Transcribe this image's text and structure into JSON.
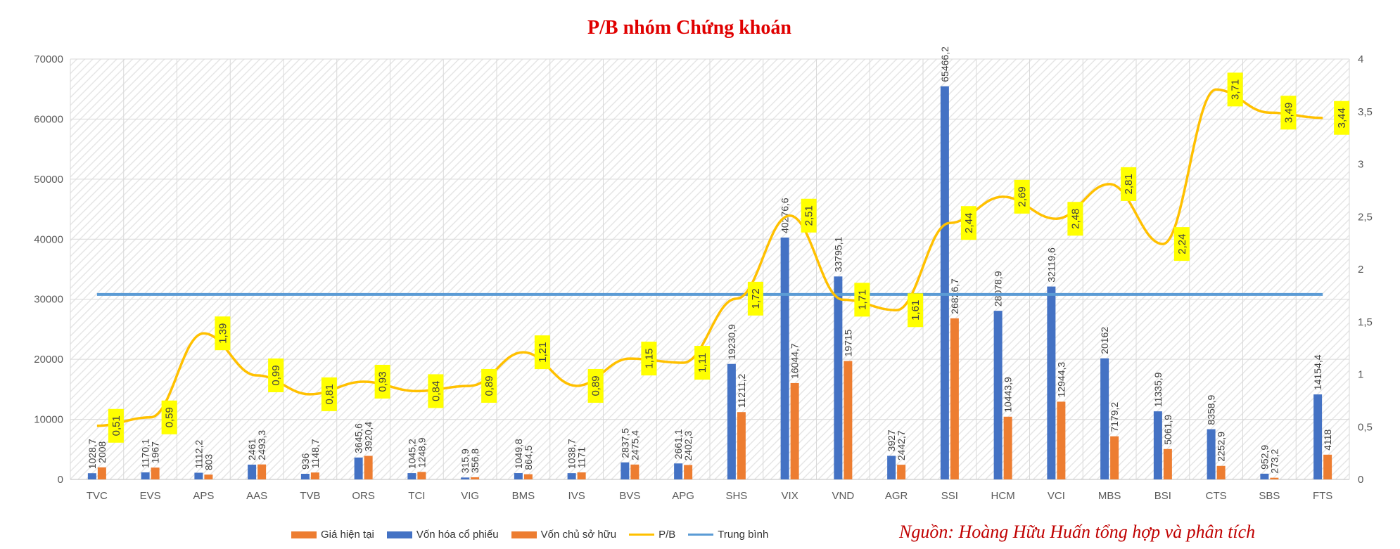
{
  "title": "P/B nhóm Chứng khoán",
  "source": "Nguồn: Hoàng Hữu Huấn tổng hợp và phân tích",
  "colors": {
    "title": "#e00000",
    "source": "#c00000",
    "von_hoa": "#4472c4",
    "von_csh": "#ed7d31",
    "gia": "#ed7d31",
    "pb": "#ffc000",
    "avg": "#5b9bd5",
    "label_bg": "#ffff00",
    "grid": "#d9d9d9",
    "axis_text": "#595959"
  },
  "legend": [
    {
      "key": "gia",
      "label": "Giá hiện tại",
      "kind": "box"
    },
    {
      "key": "von_hoa",
      "label": "Vốn hóa cổ phiếu",
      "kind": "box"
    },
    {
      "key": "von_csh",
      "label": "Vốn chủ sở hữu",
      "kind": "box"
    },
    {
      "key": "pb",
      "label": "P/B",
      "kind": "line"
    },
    {
      "key": "avg",
      "label": "Trung bình",
      "kind": "line"
    }
  ],
  "chart_data": {
    "type": "bar",
    "categories": [
      "TVC",
      "EVS",
      "APS",
      "AAS",
      "TVB",
      "ORS",
      "TCI",
      "VIG",
      "BMS",
      "IVS",
      "BVS",
      "APG",
      "SHS",
      "VIX",
      "VND",
      "AGR",
      "SSI",
      "HCM",
      "VCI",
      "MBS",
      "BSI",
      "CTS",
      "SBS",
      "FTS"
    ],
    "series": [
      {
        "name": "Vốn hóa cổ phiếu",
        "axis": "left",
        "values": [
          1028.7,
          1170.1,
          1112.2,
          2461,
          936,
          3645.6,
          1045.2,
          315.9,
          1049.8,
          1038.7,
          2837.5,
          2661.1,
          19230.9,
          40276.6,
          33795.1,
          3927,
          65466.2,
          28078.9,
          32119.6,
          20162,
          11335.9,
          8358.9,
          952.9,
          14154.4
        ],
        "labels": [
          "1028,7",
          "1170,1",
          "1112,2",
          "2461",
          "936",
          "3645,6",
          "1045,2",
          "315,9",
          "1049,8",
          "1038,7",
          "2837,5",
          "2661,1",
          "19230,9",
          "40276,6",
          "33795,1",
          "3927",
          "65466,2",
          "28078,9",
          "32119,6",
          "20162",
          "11335,9",
          "8358,9",
          "952,9",
          "14154,4"
        ]
      },
      {
        "name": "Vốn chủ sở hữu",
        "axis": "left",
        "values": [
          2008,
          1967,
          803,
          2493.3,
          1148.7,
          3920.4,
          1248.9,
          356.8,
          864.5,
          1171,
          2475.4,
          2402.3,
          11211.2,
          16044.7,
          19715,
          2442.7,
          26826.7,
          10443.9,
          12944.3,
          7179.2,
          5061.9,
          2252.9,
          273.2,
          4118
        ],
        "labels": [
          "2008",
          "1967",
          "803",
          "2493,3",
          "1148,7",
          "3920,4",
          "1248,9",
          "356,8",
          "864,5",
          "1171",
          "2475,4",
          "2402,3",
          "11211,2",
          "16044,7",
          "19715",
          "2442,7",
          "26826,7",
          "10443,9",
          "12944,3",
          "7179,2",
          "5061,9",
          "2252,9",
          "273,2",
          "4118"
        ]
      },
      {
        "name": "P/B",
        "axis": "right",
        "type": "line",
        "values": [
          0.51,
          0.59,
          1.39,
          0.99,
          0.81,
          0.93,
          0.84,
          0.89,
          1.21,
          0.89,
          1.15,
          1.11,
          1.72,
          2.51,
          1.71,
          1.61,
          2.44,
          2.69,
          2.48,
          2.81,
          2.24,
          3.71,
          3.49,
          3.44
        ],
        "labels": [
          "0,51",
          "0,59",
          "1,39",
          "0,99",
          "0,81",
          "0,93",
          "0,84",
          "0,89",
          "1,21",
          "0,89",
          "1,15",
          "1,11",
          "1,72",
          "2,51",
          "1,71",
          "1,61",
          "2,44",
          "2,69",
          "2,48",
          "2,81",
          "2,24",
          "3,71",
          "3,49",
          "3,44"
        ]
      },
      {
        "name": "Trung bình",
        "axis": "right",
        "type": "line",
        "value": 1.76
      }
    ],
    "y_left": {
      "min": 0,
      "max": 70000,
      "ticks": [
        "0",
        "10000",
        "20000",
        "30000",
        "40000",
        "50000",
        "60000",
        "70000"
      ]
    },
    "y_right": {
      "min": 0,
      "max": 4,
      "ticks": [
        "0",
        "0,5",
        "1",
        "1,5",
        "2",
        "2,5",
        "3",
        "3,5",
        "4"
      ]
    },
    "grid": true,
    "legend_position": "bottom"
  }
}
